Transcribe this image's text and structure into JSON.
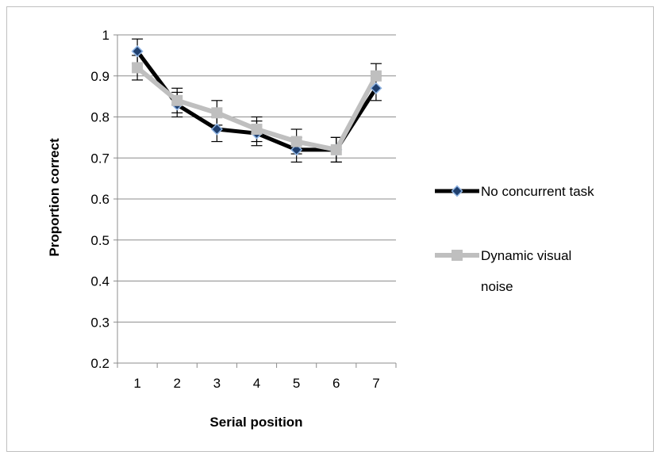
{
  "chart_data": {
    "type": "line",
    "title": "",
    "xlabel": "Serial position",
    "ylabel": "Proportion correct",
    "categories": [
      "1",
      "2",
      "3",
      "4",
      "5",
      "6",
      "7"
    ],
    "ylim": [
      0.2,
      1
    ],
    "yticks": [
      "0.2",
      "0.3",
      "0.4",
      "0.5",
      "0.6",
      "0.7",
      "0.8",
      "0.9",
      "1"
    ],
    "grid": "horizontal",
    "legend_position": "right",
    "series": [
      {
        "name": "No concurrent task",
        "color": "#000000",
        "marker": "diamond",
        "marker_fill": "#1f3f6e",
        "marker_edge": "#8fb4e3",
        "values": [
          0.96,
          0.83,
          0.77,
          0.76,
          0.72,
          0.72,
          0.87
        ],
        "error_low": [
          0.93,
          0.8,
          0.74,
          0.73,
          0.69,
          0.69,
          0.84
        ],
        "error_high": [
          0.99,
          0.86,
          0.8,
          0.79,
          0.75,
          0.75,
          0.9
        ]
      },
      {
        "name": "Dynamic visual noise",
        "color": "#bfbfbf",
        "marker": "square",
        "values": [
          0.92,
          0.84,
          0.81,
          0.77,
          0.74,
          0.72,
          0.9
        ],
        "error_low": [
          0.89,
          0.81,
          0.78,
          0.74,
          0.71,
          0.69,
          0.87
        ],
        "error_high": [
          0.95,
          0.87,
          0.84,
          0.8,
          0.77,
          0.75,
          0.93
        ]
      }
    ],
    "legend": {
      "entries": [
        {
          "lines": [
            "No concurrent task"
          ]
        },
        {
          "lines": [
            "Dynamic visual",
            "noise"
          ]
        }
      ]
    }
  }
}
